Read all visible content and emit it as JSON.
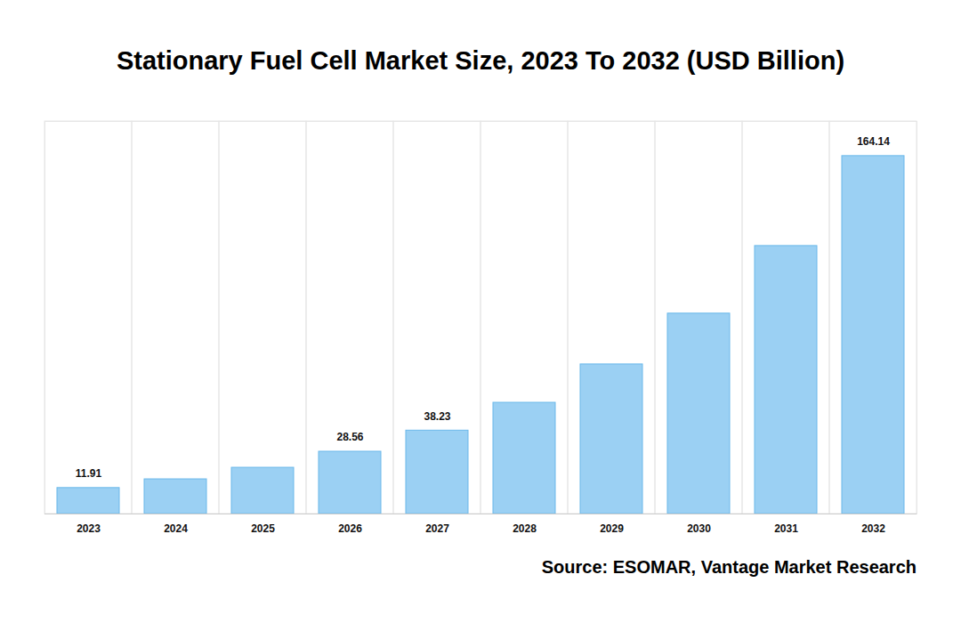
{
  "chart_data": {
    "type": "bar",
    "title": "Stationary Fuel Cell Market Size, 2023 To 2032 (USD Billion)",
    "caption": "Source: ESOMAR, Vantage Market Research",
    "categories": [
      "2023",
      "2024",
      "2025",
      "2026",
      "2027",
      "2028",
      "2029",
      "2030",
      "2031",
      "2032"
    ],
    "values": [
      11.91,
      15.9,
      21.2,
      28.56,
      38.23,
      51.0,
      68.6,
      91.9,
      122.9,
      164.14
    ],
    "value_labels": [
      "11.91",
      null,
      null,
      "28.56",
      "38.23",
      null,
      null,
      null,
      null,
      "164.14"
    ],
    "data_labels": true,
    "color": "#9bd0f3",
    "ylim": [
      0,
      180
    ],
    "yticks": [],
    "grid": true,
    "tick_labels": "x"
  }
}
